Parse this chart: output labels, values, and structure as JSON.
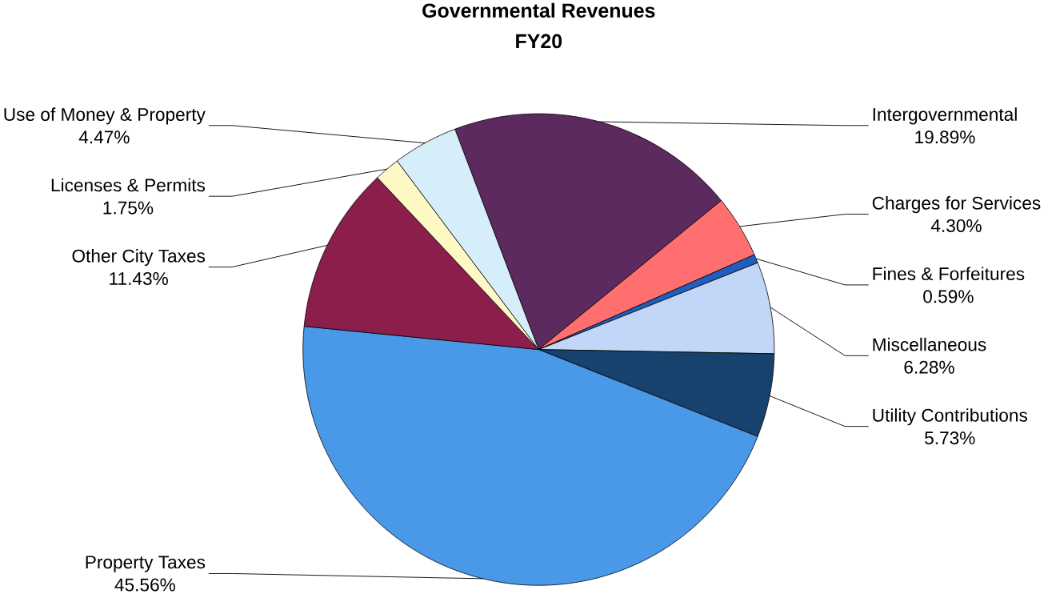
{
  "chart_data": {
    "type": "pie",
    "title": "Governmental Revenues",
    "subtitle": "FY20",
    "categories": [
      "Intergovernmental",
      "Charges for Services",
      "Fines & Forfeitures",
      "Miscellaneous",
      "Utility Contributions",
      "Property Taxes",
      "Other City Taxes",
      "Licenses & Permits",
      "Use of Money & Property"
    ],
    "values": [
      19.89,
      4.3,
      0.59,
      6.28,
      5.73,
      45.56,
      11.43,
      1.75,
      4.47
    ],
    "value_labels": [
      "19.89%",
      "4.30%",
      "0.59%",
      "6.28%",
      "5.73%",
      "45.56%",
      "11.43%",
      "1.75%",
      "4.47%"
    ],
    "colors": [
      "#5c2a5e",
      "#ff6f6f",
      "#1f5fc0",
      "#c2d6f7",
      "#17426e",
      "#4a99e8",
      "#8b1e4a",
      "#fdf8c4",
      "#d6eefa"
    ]
  }
}
